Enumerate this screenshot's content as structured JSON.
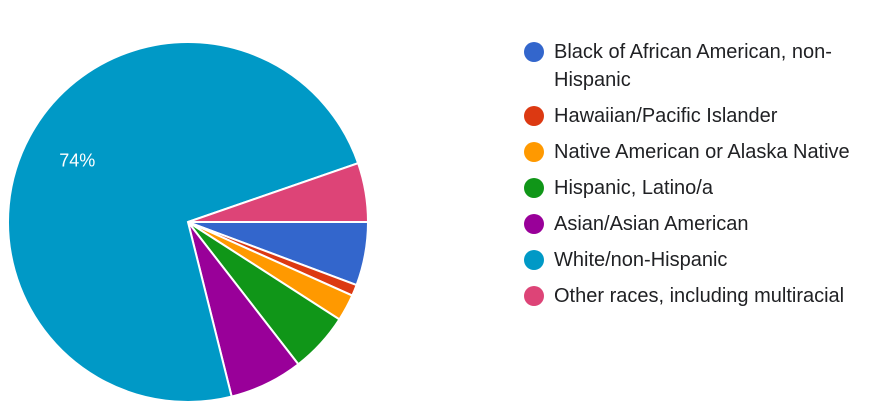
{
  "chart_data": {
    "type": "pie",
    "categories": [
      "Black of African American, non-Hispanic",
      "Hawaiian/Pacific Islander",
      "Native American or Alaska Native",
      "Hispanic, Latino/a",
      "Asian/Asian American",
      "White/non-Hispanic",
      "Other races, including multiracial"
    ],
    "values": [
      5.7,
      1.0,
      2.4,
      5.4,
      6.6,
      73.6,
      5.3
    ],
    "value_labels": [
      null,
      null,
      null,
      null,
      null,
      "74%",
      null
    ],
    "colors": [
      "#3366cc",
      "#dc3912",
      "#ff9900",
      "#109618",
      "#990099",
      "#0099c6",
      "#dd4477"
    ],
    "legend": "right"
  }
}
